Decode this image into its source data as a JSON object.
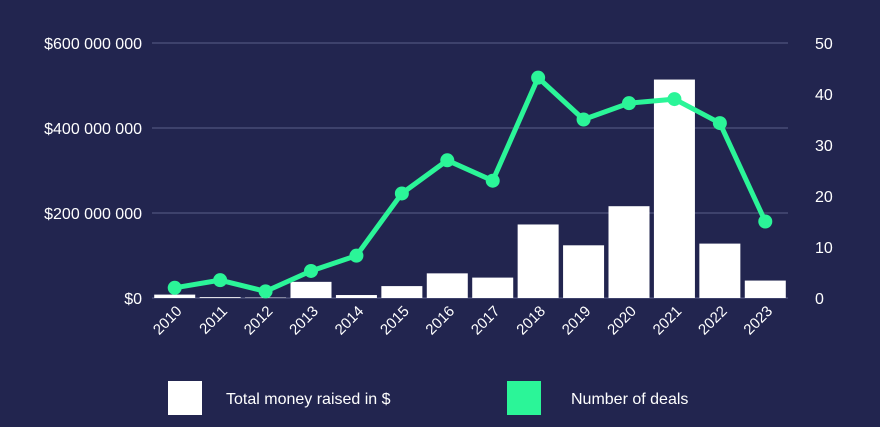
{
  "chart_data": {
    "type": "bar",
    "title": "",
    "categories": [
      "2010",
      "2011",
      "2012",
      "2013",
      "2014",
      "2015",
      "2016",
      "2017",
      "2018",
      "2019",
      "2020",
      "2021",
      "2022",
      "2023"
    ],
    "series": [
      {
        "name": "Total money raised in $",
        "type": "bar",
        "axis": "left",
        "color": "#ffffff",
        "values": [
          8000000,
          2000000,
          1000000,
          38000000,
          7000000,
          28000000,
          58000000,
          48000000,
          173000000,
          124000000,
          216000000,
          514000000,
          128000000,
          41000000
        ]
      },
      {
        "name": "Number of deals",
        "type": "line",
        "axis": "right",
        "color": "#2bf598",
        "values": [
          2,
          3.5,
          1.3,
          5.3,
          8.3,
          20.5,
          27,
          23,
          43.2,
          35,
          38.2,
          39,
          34.3,
          15
        ]
      }
    ],
    "y_left": {
      "range": [
        0,
        600000000
      ],
      "ticks": [
        0,
        200000000,
        400000000,
        600000000
      ],
      "tick_labels": [
        "$0",
        "$200 000 000",
        "$400 000 000",
        "$600 000 000"
      ]
    },
    "y_right": {
      "range": [
        0,
        50
      ],
      "ticks": [
        0,
        10,
        20,
        30,
        40,
        50
      ],
      "tick_labels": [
        "0",
        "10",
        "20",
        "30",
        "40",
        "50"
      ]
    },
    "grid": "horizontal",
    "legend_position": "bottom"
  }
}
